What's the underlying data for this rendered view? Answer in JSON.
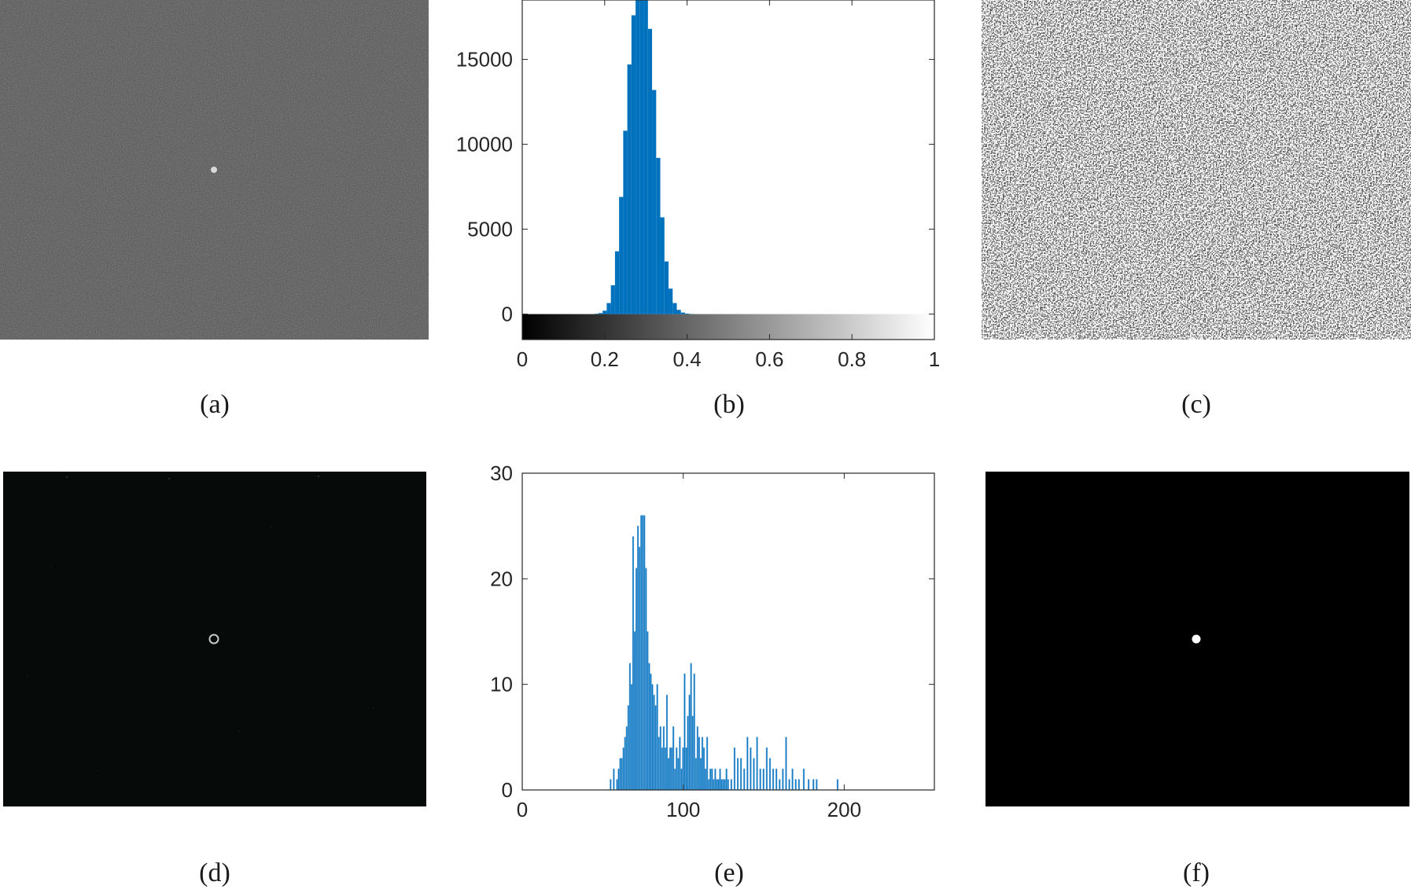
{
  "captions": {
    "a": "(a)",
    "b": "(b)",
    "c": "(c)",
    "d": "(d)",
    "e": "(e)",
    "f": "(f)"
  },
  "images": {
    "a": {
      "background": "#4a4a4a",
      "description_tag": "noisy-grayscale-frame"
    },
    "c": {
      "background": "#ffffff",
      "foreground": "#000000"
    },
    "d": {
      "background": "#060a08"
    },
    "f": {
      "background": "#000000"
    }
  },
  "chart_data": [
    {
      "id": "b",
      "type": "bar",
      "title": "",
      "xlabel": "",
      "ylabel": "",
      "xlim": [
        0,
        1
      ],
      "ylim": [
        -1500,
        18500
      ],
      "xticks": [
        0,
        0.2,
        0.4,
        0.6,
        0.8,
        1
      ],
      "xtick_labels": [
        "0",
        "0.2",
        "0.4",
        "0.6",
        "0.8",
        "1"
      ],
      "yticks": [
        0,
        5000,
        10000,
        15000
      ],
      "ytick_labels": [
        "0",
        "5000",
        "10000",
        "15000"
      ],
      "colorbar": {
        "range": [
          0,
          1
        ],
        "colors": [
          "#000000",
          "#ffffff"
        ]
      },
      "bar_color": "#0072bd",
      "x": [
        0.18,
        0.19,
        0.2,
        0.21,
        0.22,
        0.23,
        0.24,
        0.25,
        0.26,
        0.27,
        0.28,
        0.29,
        0.3,
        0.31,
        0.32,
        0.33,
        0.34,
        0.35,
        0.36,
        0.37,
        0.38,
        0.39,
        0.4,
        0.41,
        0.42
      ],
      "values": [
        20,
        60,
        200,
        650,
        1700,
        3700,
        6900,
        10800,
        14700,
        17600,
        18500,
        18500,
        18500,
        16800,
        13200,
        9200,
        5700,
        3100,
        1500,
        650,
        250,
        90,
        30,
        10,
        5
      ]
    },
    {
      "id": "e",
      "type": "bar",
      "title": "",
      "xlabel": "",
      "ylabel": "",
      "xlim": [
        0,
        256
      ],
      "ylim": [
        0,
        30
      ],
      "xticks": [
        0,
        100,
        200
      ],
      "xtick_labels": [
        "0",
        "100",
        "200"
      ],
      "yticks": [
        0,
        10,
        20,
        30
      ],
      "ytick_labels": [
        "0",
        "10",
        "20",
        "30"
      ],
      "bar_color": "#0072bd",
      "x": [
        55,
        57,
        59,
        60,
        61,
        62,
        63,
        64,
        65,
        66,
        67,
        68,
        69,
        70,
        71,
        72,
        73,
        74,
        75,
        76,
        77,
        78,
        79,
        80,
        81,
        82,
        83,
        84,
        85,
        86,
        87,
        88,
        89,
        90,
        91,
        92,
        93,
        94,
        95,
        96,
        97,
        98,
        99,
        100,
        101,
        102,
        103,
        104,
        105,
        106,
        107,
        108,
        109,
        110,
        111,
        112,
        113,
        114,
        115,
        116,
        117,
        118,
        119,
        120,
        121,
        122,
        123,
        124,
        125,
        126,
        127,
        128,
        130,
        132,
        134,
        136,
        138,
        140,
        142,
        144,
        146,
        148,
        150,
        152,
        154,
        156,
        158,
        160,
        162,
        164,
        166,
        168,
        170,
        172,
        175,
        178,
        181,
        183,
        196
      ],
      "values": [
        1,
        2,
        1,
        2,
        3,
        3,
        4,
        5,
        6,
        8,
        12,
        10,
        24,
        15,
        21,
        25,
        23,
        26,
        26,
        26,
        21,
        15,
        12,
        11,
        10,
        9,
        8,
        10,
        5,
        6,
        4,
        6,
        4,
        9,
        3,
        4,
        4,
        6,
        2,
        4,
        3,
        5,
        2,
        4,
        11,
        4,
        7,
        9,
        12,
        7,
        11,
        3,
        6,
        5,
        3,
        5,
        4,
        2,
        5,
        1,
        2,
        2,
        1,
        2,
        1,
        1,
        2,
        1,
        1,
        1,
        2,
        1,
        1,
        4,
        3,
        3,
        2,
        5,
        4,
        3,
        5,
        2,
        2,
        4,
        3,
        2,
        2,
        1,
        2,
        5,
        1,
        2,
        1,
        1,
        2,
        1,
        1,
        1,
        1
      ]
    }
  ]
}
